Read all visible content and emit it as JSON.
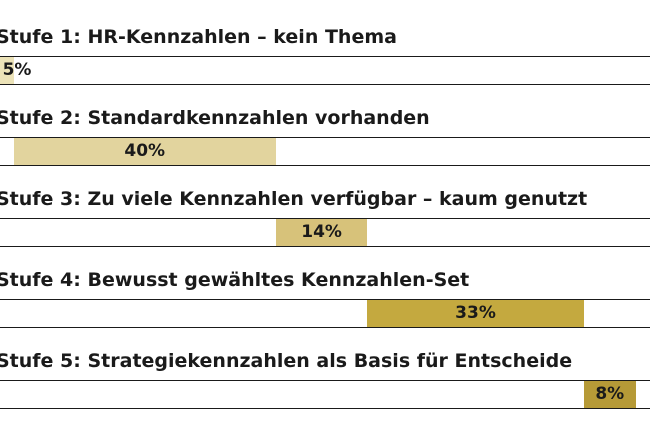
{
  "chart_data": {
    "type": "bar",
    "orientation": "horizontal-stacked-segments",
    "categories": [
      "Stufe 1: HR-Kennzahlen – kein Thema",
      "Stufe 2: Standardkennzahlen vorhanden",
      "Stufe 3: Zu viele Kennzahlen verfügbar – kaum genutzt",
      "Stufe 4: Bewusst gewähltes Kennzahlen-Set",
      "Stufe 5: Strategiekennzahlen als Basis für Entscheide"
    ],
    "values": [
      5,
      40,
      14,
      33,
      8
    ],
    "value_labels": [
      "5%",
      "40%",
      "14%",
      "33%",
      "8%"
    ],
    "unit": "%",
    "colors": [
      "#ece3b8",
      "#e2d49e",
      "#d7c27a",
      "#c4a93f",
      "#b69a37"
    ],
    "grid": false,
    "legend": "none"
  }
}
